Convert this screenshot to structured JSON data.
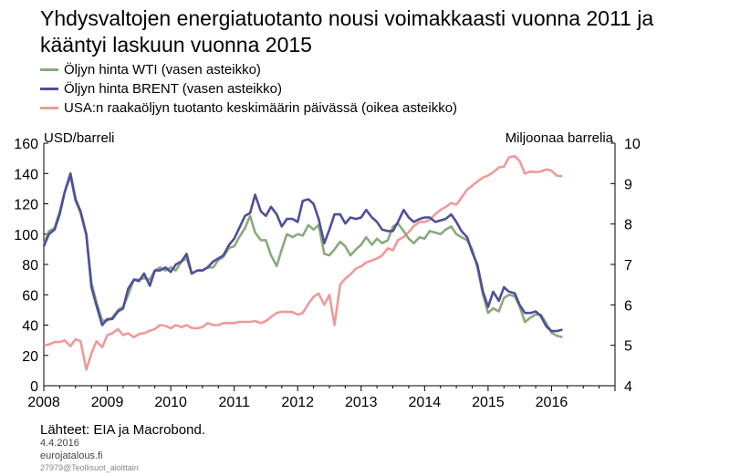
{
  "colors": {
    "wti": "#8aaa7d",
    "brent": "#4e4f9b",
    "production": "#ef9a9a"
  },
  "chart_data": {
    "type": "line",
    "title": "Yhdysvaltojen energiatuotanto nousi voimakkaasti vuonna 2011 ja kääntyi laskuun vuonna 2015",
    "ylabel_left": "USD/barreli",
    "ylabel_right": "Miljoonaa barrelia",
    "xlim": [
      2008,
      2017
    ],
    "ylim_left": [
      0,
      160
    ],
    "ylim_right": [
      4,
      10
    ],
    "x_ticks": [
      2008,
      2009,
      2010,
      2011,
      2012,
      2013,
      2014,
      2015,
      2016
    ],
    "y_ticks_left": [
      0,
      20,
      40,
      60,
      80,
      100,
      120,
      140,
      160
    ],
    "y_ticks_right": [
      4,
      5,
      6,
      7,
      8,
      9,
      10
    ],
    "grid": false,
    "legend_position": "top-left",
    "series": [
      {
        "name": "Öljyn hinta WTI (vasen asteikko)",
        "axis": "left",
        "x": [
          2008.0,
          2008.08,
          2008.17,
          2008.25,
          2008.33,
          2008.42,
          2008.5,
          2008.58,
          2008.67,
          2008.75,
          2008.83,
          2008.92,
          2009.0,
          2009.08,
          2009.17,
          2009.25,
          2009.33,
          2009.42,
          2009.5,
          2009.58,
          2009.67,
          2009.75,
          2009.83,
          2009.92,
          2010.0,
          2010.08,
          2010.17,
          2010.25,
          2010.33,
          2010.42,
          2010.5,
          2010.58,
          2010.67,
          2010.75,
          2010.83,
          2010.92,
          2011.0,
          2011.08,
          2011.17,
          2011.25,
          2011.33,
          2011.42,
          2011.5,
          2011.58,
          2011.67,
          2011.75,
          2011.83,
          2011.92,
          2012.0,
          2012.08,
          2012.17,
          2012.25,
          2012.33,
          2012.42,
          2012.5,
          2012.58,
          2012.67,
          2012.75,
          2012.83,
          2012.92,
          2013.0,
          2013.08,
          2013.17,
          2013.25,
          2013.33,
          2013.42,
          2013.5,
          2013.58,
          2013.67,
          2013.75,
          2013.83,
          2013.92,
          2014.0,
          2014.08,
          2014.17,
          2014.25,
          2014.33,
          2014.42,
          2014.5,
          2014.58,
          2014.67,
          2014.75,
          2014.83,
          2014.92,
          2015.0,
          2015.08,
          2015.17,
          2015.25,
          2015.33,
          2015.42,
          2015.5,
          2015.58,
          2015.67,
          2015.75,
          2015.83,
          2015.92,
          2016.0,
          2016.08,
          2016.17
        ],
        "values": [
          93,
          102,
          104,
          115,
          128,
          138,
          122,
          114,
          99,
          68,
          55,
          43,
          43,
          45,
          50,
          52,
          60,
          70,
          70,
          71,
          70,
          76,
          78,
          76,
          78,
          76,
          82,
          84,
          74,
          76,
          76,
          78,
          78,
          83,
          85,
          91,
          92,
          98,
          104,
          112,
          101,
          96,
          96,
          86,
          79,
          90,
          100,
          98,
          100,
          99,
          106,
          103,
          106,
          87,
          86,
          90,
          95,
          92,
          86,
          90,
          93,
          98,
          93,
          97,
          94,
          96,
          105,
          107,
          102,
          97,
          94,
          98,
          97,
          102,
          101,
          100,
          103,
          105,
          100,
          98,
          96,
          90,
          78,
          60,
          48,
          51,
          49,
          58,
          60,
          59,
          52,
          42,
          45,
          47,
          47,
          41,
          35,
          33,
          32
        ]
      },
      {
        "name": "Öljyn hinta BRENT (vasen asteikko)",
        "axis": "left",
        "x": [
          2008.0,
          2008.08,
          2008.17,
          2008.25,
          2008.33,
          2008.42,
          2008.5,
          2008.58,
          2008.67,
          2008.75,
          2008.83,
          2008.92,
          2009.0,
          2009.08,
          2009.17,
          2009.25,
          2009.33,
          2009.42,
          2009.5,
          2009.58,
          2009.67,
          2009.75,
          2009.83,
          2009.92,
          2010.0,
          2010.08,
          2010.17,
          2010.25,
          2010.33,
          2010.42,
          2010.5,
          2010.58,
          2010.67,
          2010.75,
          2010.83,
          2010.92,
          2011.0,
          2011.08,
          2011.17,
          2011.25,
          2011.33,
          2011.42,
          2011.5,
          2011.58,
          2011.67,
          2011.75,
          2011.83,
          2011.92,
          2012.0,
          2012.08,
          2012.17,
          2012.25,
          2012.33,
          2012.42,
          2012.5,
          2012.58,
          2012.67,
          2012.75,
          2012.83,
          2012.92,
          2013.0,
          2013.08,
          2013.17,
          2013.25,
          2013.33,
          2013.42,
          2013.5,
          2013.58,
          2013.67,
          2013.75,
          2013.83,
          2013.92,
          2014.0,
          2014.08,
          2014.17,
          2014.25,
          2014.33,
          2014.42,
          2014.5,
          2014.58,
          2014.67,
          2014.75,
          2014.83,
          2014.92,
          2015.0,
          2015.08,
          2015.17,
          2015.25,
          2015.33,
          2015.42,
          2015.5,
          2015.58,
          2015.67,
          2015.75,
          2015.83,
          2015.92,
          2016.0,
          2016.08,
          2016.17
        ],
        "values": [
          92,
          100,
          103,
          113,
          128,
          140,
          123,
          115,
          100,
          65,
          53,
          40,
          44,
          44,
          49,
          51,
          64,
          70,
          69,
          74,
          66,
          76,
          76,
          78,
          75,
          80,
          82,
          87,
          74,
          76,
          76,
          78,
          82,
          84,
          86,
          93,
          97,
          104,
          112,
          114,
          126,
          115,
          112,
          118,
          113,
          105,
          110,
          110,
          108,
          122,
          123,
          120,
          110,
          94,
          103,
          113,
          113,
          107,
          111,
          110,
          111,
          116,
          111,
          108,
          103,
          102,
          102,
          108,
          116,
          111,
          108,
          110,
          111,
          111,
          108,
          109,
          110,
          113,
          108,
          102,
          98,
          88,
          80,
          62,
          52,
          62,
          56,
          65,
          62,
          61,
          53,
          48,
          48,
          49,
          46,
          39,
          36,
          36,
          37
        ]
      },
      {
        "name": "USA:n raakaöljyn tuotanto keskimäärin päivässä (oikea asteikko)",
        "axis": "right",
        "x": [
          2008.0,
          2008.08,
          2008.17,
          2008.25,
          2008.33,
          2008.42,
          2008.5,
          2008.58,
          2008.67,
          2008.75,
          2008.83,
          2008.92,
          2009.0,
          2009.08,
          2009.17,
          2009.25,
          2009.33,
          2009.42,
          2009.5,
          2009.58,
          2009.67,
          2009.75,
          2009.83,
          2009.92,
          2010.0,
          2010.08,
          2010.17,
          2010.25,
          2010.33,
          2010.42,
          2010.5,
          2010.58,
          2010.67,
          2010.75,
          2010.83,
          2010.92,
          2011.0,
          2011.08,
          2011.17,
          2011.25,
          2011.33,
          2011.42,
          2011.5,
          2011.58,
          2011.67,
          2011.75,
          2011.83,
          2011.92,
          2012.0,
          2012.08,
          2012.17,
          2012.25,
          2012.33,
          2012.42,
          2012.5,
          2012.58,
          2012.67,
          2012.75,
          2012.83,
          2012.92,
          2013.0,
          2013.08,
          2013.17,
          2013.25,
          2013.33,
          2013.42,
          2013.5,
          2013.58,
          2013.67,
          2013.75,
          2013.83,
          2013.92,
          2014.0,
          2014.08,
          2014.17,
          2014.25,
          2014.33,
          2014.42,
          2014.5,
          2014.58,
          2014.67,
          2014.75,
          2014.83,
          2014.92,
          2015.0,
          2015.08,
          2015.17,
          2015.25,
          2015.33,
          2015.42,
          2015.5,
          2015.58,
          2015.67,
          2015.75,
          2015.83,
          2015.92,
          2016.0,
          2016.08,
          2016.17
        ],
        "values": [
          5.0,
          5.02,
          5.08,
          5.08,
          5.12,
          4.98,
          5.15,
          5.1,
          4.4,
          4.8,
          5.1,
          4.95,
          5.25,
          5.3,
          5.4,
          5.25,
          5.3,
          5.2,
          5.28,
          5.3,
          5.36,
          5.4,
          5.5,
          5.48,
          5.42,
          5.5,
          5.45,
          5.5,
          5.43,
          5.42,
          5.45,
          5.55,
          5.5,
          5.5,
          5.55,
          5.55,
          5.55,
          5.58,
          5.58,
          5.58,
          5.6,
          5.55,
          5.6,
          5.7,
          5.8,
          5.83,
          5.83,
          5.82,
          5.76,
          5.8,
          6.03,
          6.2,
          6.28,
          6.0,
          6.25,
          5.5,
          6.5,
          6.65,
          6.75,
          6.9,
          6.95,
          7.05,
          7.1,
          7.15,
          7.22,
          7.4,
          7.35,
          7.6,
          7.68,
          7.8,
          7.95,
          8.05,
          8.05,
          8.1,
          8.25,
          8.35,
          8.42,
          8.52,
          8.48,
          8.65,
          8.85,
          8.95,
          9.05,
          9.15,
          9.2,
          9.28,
          9.4,
          9.42,
          9.65,
          9.68,
          9.55,
          9.25,
          9.3,
          9.28,
          9.3,
          9.35,
          9.32,
          9.2,
          9.18
        ]
      }
    ]
  },
  "footer": {
    "source": "Lähteet: EIA ja Macrobond.",
    "date": "4.4.2016",
    "site": "eurojatalous.fi",
    "ref": "27979@Teollisuot_aloittain"
  }
}
